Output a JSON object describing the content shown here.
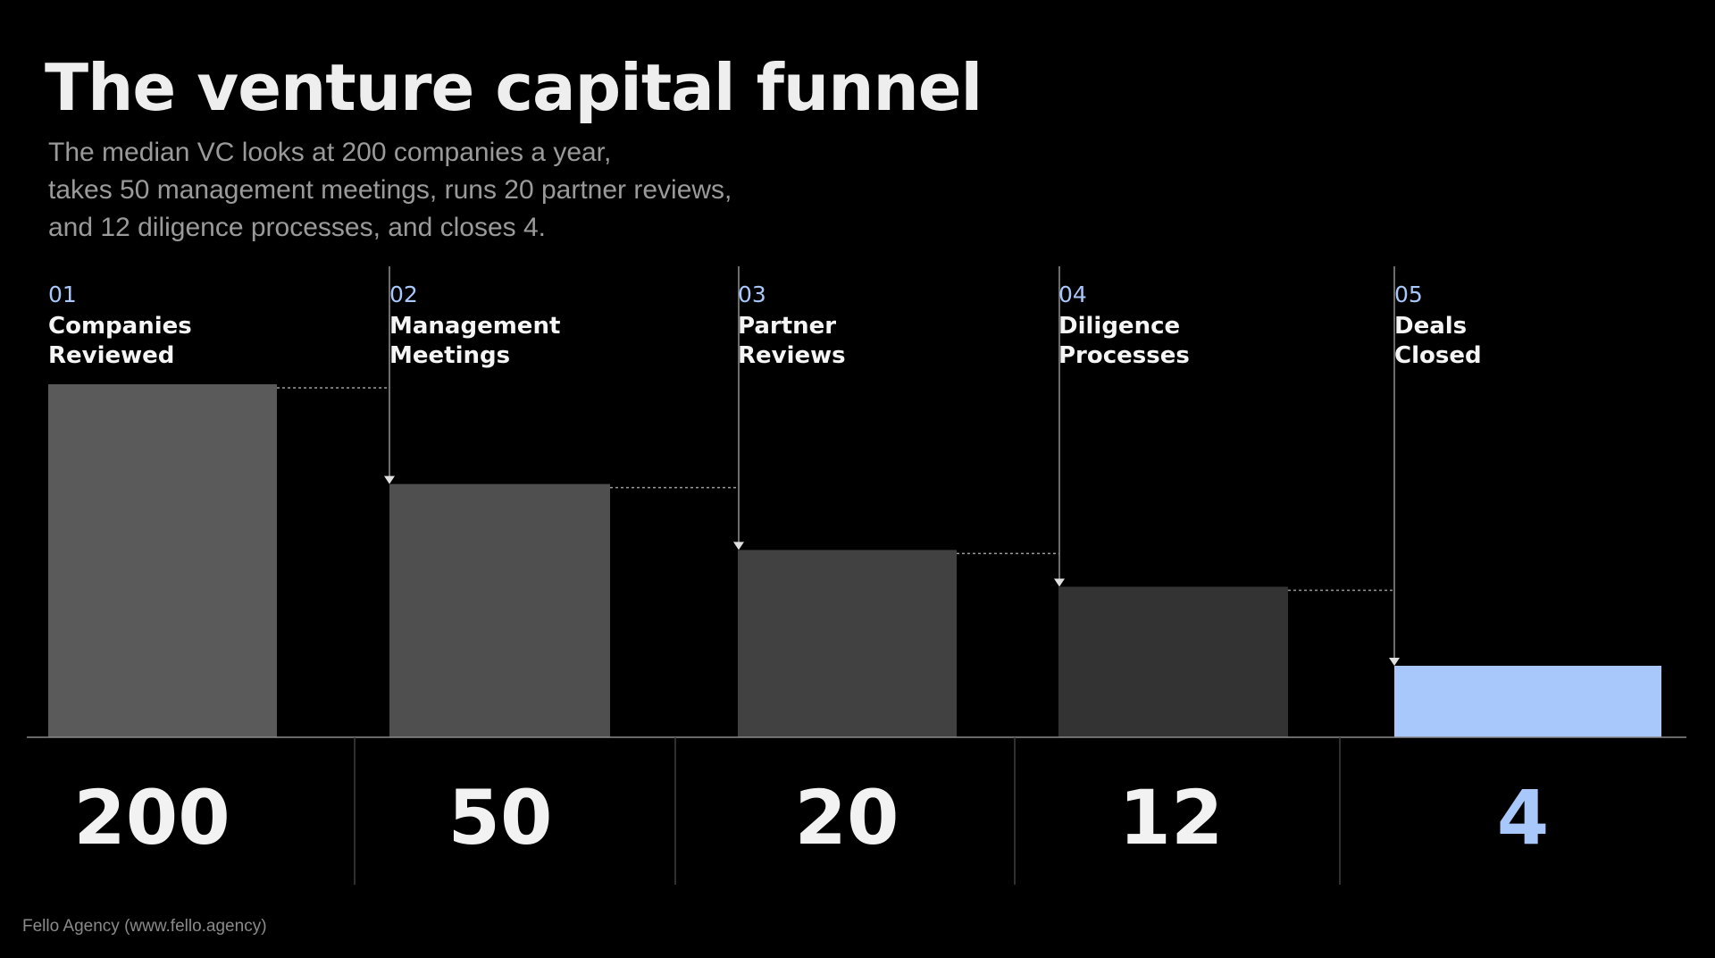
{
  "title": "The venture capital funnel",
  "subtitle": [
    "The median VC looks at 200 companies a year,",
    "takes 50 management meetings, runs 20 partner reviews,",
    "and 12 diligence processes, and closes 4."
  ],
  "footer": "Fello Agency (www.fello.agency)",
  "colors": {
    "background": "#000000",
    "accent": "#a8c7fa",
    "step_number": "#a8c7fa",
    "bars": [
      "#5a5a5a",
      "#4f4f4f",
      "#414141",
      "#333333",
      "#a8c7fa"
    ],
    "value_text": [
      "#f2f2f2",
      "#f2f2f2",
      "#f2f2f2",
      "#f2f2f2",
      "#a8c7fa"
    ]
  },
  "chart_data": {
    "type": "bar",
    "title": "The venture capital funnel",
    "xlabel": "",
    "ylabel": "",
    "grid": false,
    "legend": "none",
    "ylim": [
      0,
      200
    ],
    "categories": [
      "Companies Reviewed",
      "Management Meetings",
      "Partner Reviews",
      "Diligence Processes",
      "Deals Closed"
    ],
    "step_numbers": [
      "01",
      "02",
      "03",
      "04",
      "05"
    ],
    "label_lines": [
      [
        "Companies",
        "Reviewed"
      ],
      [
        "Management",
        "Meetings"
      ],
      [
        "Partner",
        "Reviews"
      ],
      [
        "Diligence",
        "Processes"
      ],
      [
        "Deals",
        "Closed"
      ]
    ],
    "values": [
      200,
      50,
      20,
      12,
      4
    ],
    "value_labels": [
      "200",
      "50",
      "20",
      "12",
      "4"
    ]
  }
}
